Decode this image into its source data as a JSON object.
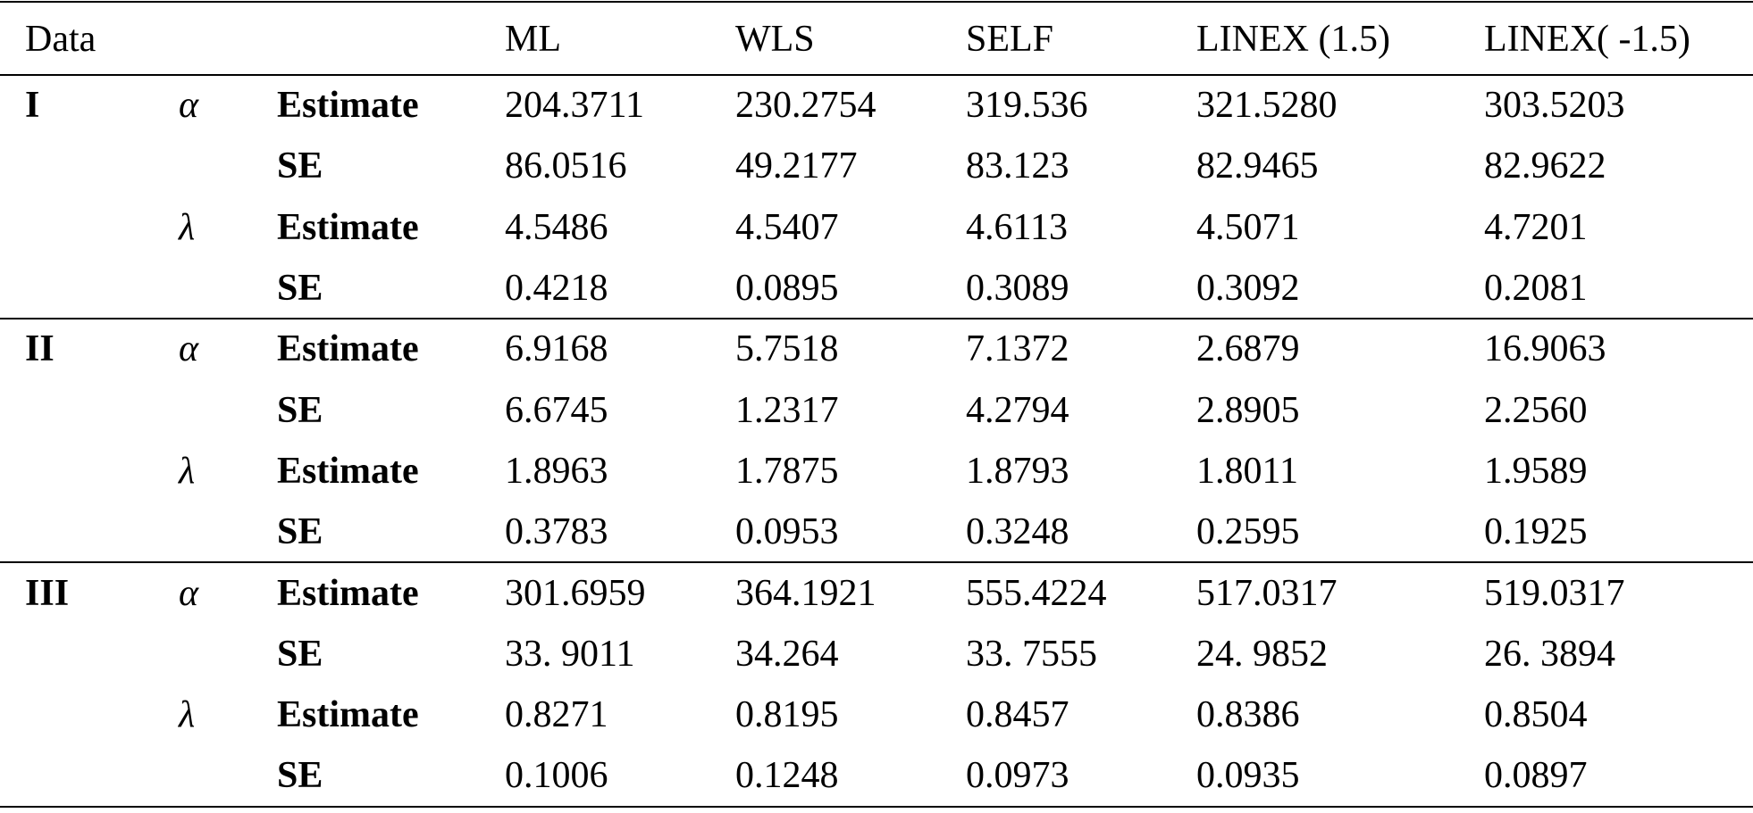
{
  "table": {
    "header": {
      "data": "Data",
      "methods": [
        "ML",
        "WLS",
        "SELF",
        "LINEX (1.5)",
        "LINEX( -1.5)"
      ]
    },
    "groups": [
      {
        "label": "I",
        "params": [
          {
            "symbol": "α",
            "rows": [
              {
                "stat": "Estimate",
                "values": [
                  "204.3711",
                  "230.2754",
                  "319.536",
                  "321.5280",
                  "303.5203"
                ]
              },
              {
                "stat": "SE",
                "values": [
                  "86.0516",
                  "49.2177",
                  "83.123",
                  "82.9465",
                  "82.9622"
                ]
              }
            ]
          },
          {
            "symbol": "λ",
            "rows": [
              {
                "stat": "Estimate",
                "values": [
                  "4.5486",
                  "4.5407",
                  "4.6113",
                  "4.5071",
                  "4.7201"
                ]
              },
              {
                "stat": "SE",
                "values": [
                  "0.4218",
                  "0.0895",
                  "0.3089",
                  "0.3092",
                  "0.2081"
                ]
              }
            ]
          }
        ]
      },
      {
        "label": "II",
        "params": [
          {
            "symbol": "α",
            "rows": [
              {
                "stat": "Estimate",
                "values": [
                  "6.9168",
                  "5.7518",
                  "7.1372",
                  "2.6879",
                  "16.9063"
                ]
              },
              {
                "stat": "SE",
                "values": [
                  "6.6745",
                  "1.2317",
                  "4.2794",
                  "2.8905",
                  "2.2560"
                ]
              }
            ]
          },
          {
            "symbol": "λ",
            "rows": [
              {
                "stat": "Estimate",
                "values": [
                  "1.8963",
                  "1.7875",
                  "1.8793",
                  "1.8011",
                  "1.9589"
                ]
              },
              {
                "stat": "SE",
                "values": [
                  "0.3783",
                  "0.0953",
                  "0.3248",
                  "0.2595",
                  "0.1925"
                ]
              }
            ]
          }
        ]
      },
      {
        "label": "III",
        "params": [
          {
            "symbol": "α",
            "rows": [
              {
                "stat": "Estimate",
                "values": [
                  "301.6959",
                  "364.1921",
                  "555.4224",
                  "517.0317",
                  "519.0317"
                ]
              },
              {
                "stat": "SE",
                "values": [
                  "33. 9011",
                  "34.264",
                  "33. 7555",
                  "24. 9852",
                  "26. 3894"
                ]
              }
            ]
          },
          {
            "symbol": "λ",
            "rows": [
              {
                "stat": "Estimate",
                "values": [
                  "0.8271",
                  "0.8195",
                  "0.8457",
                  "0.8386",
                  "0.8504"
                ]
              },
              {
                "stat": "SE",
                "values": [
                  "0.1006",
                  "0.1248",
                  "0.0973",
                  "0.0935",
                  "0.0897"
                ]
              }
            ]
          }
        ]
      }
    ]
  }
}
